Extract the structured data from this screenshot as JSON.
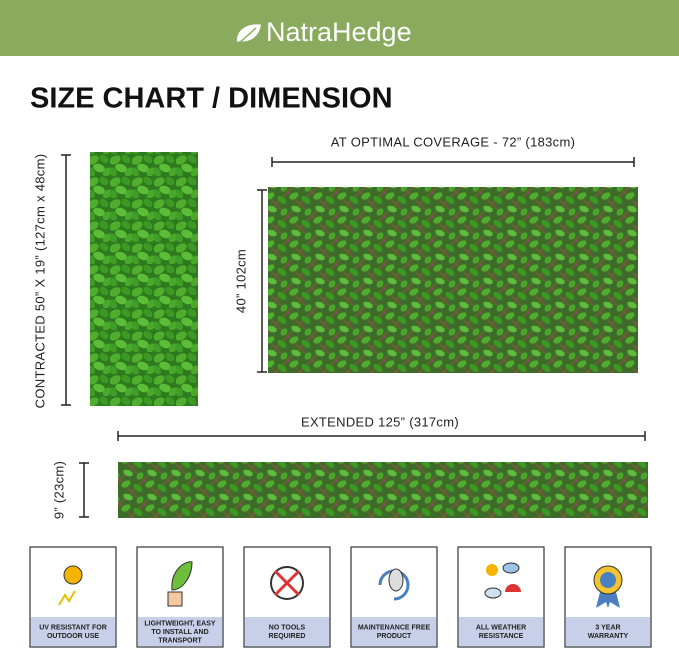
{
  "header": {
    "brand": "NatraHedge"
  },
  "title": "SIZE CHART / DIMENSION",
  "dimensions": {
    "contracted": "CONTRACTED 50” X 19” (127cm x 48cm)",
    "optimal": "AT OPTIMAL COVERAGE - 72” (183cm)",
    "height": "40” 102cm",
    "extended": "EXTENDED 125” (317cm)",
    "extended_height": "9” (23cm)"
  },
  "features": [
    {
      "lines": [
        "UV RESISTANT FOR",
        "OUTDOOR USE"
      ]
    },
    {
      "lines": [
        "LIGHTWEIGHT, EASY",
        "TO INSTALL AND",
        "TRANSPORT"
      ]
    },
    {
      "lines": [
        "NO TOOLS",
        "REQUIRED"
      ]
    },
    {
      "lines": [
        "MAINTENANCE FREE",
        "PRODUCT"
      ]
    },
    {
      "lines": [
        "ALL WEATHER",
        "RESISTANCE"
      ]
    },
    {
      "lines": [
        "3 YEAR",
        "WARRANTY"
      ]
    }
  ]
}
